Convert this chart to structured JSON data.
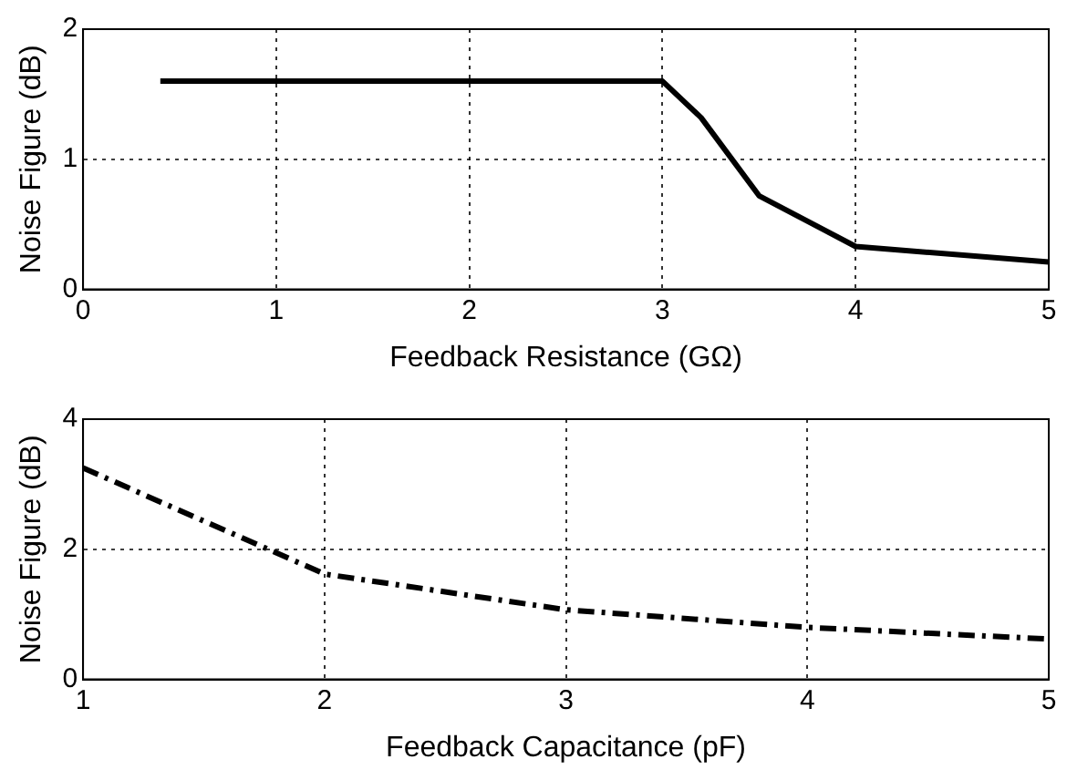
{
  "chart_data": [
    {
      "type": "line",
      "xlabel": "Feedback Resistance (GΩ)",
      "ylabel": "Noise Figure (dB)",
      "xlim": [
        0,
        5
      ],
      "xticks": [
        0,
        1,
        2,
        3,
        4,
        5
      ],
      "ylim": [
        0,
        2
      ],
      "yticks": [
        0,
        1,
        2
      ],
      "grid": true,
      "legend": false,
      "line_style": "solid",
      "marker": "none",
      "series": [
        {
          "color": "#000000",
          "x": [
            0.4,
            3,
            3.2,
            3.5,
            4,
            5
          ],
          "values": [
            1.6,
            1.6,
            1.32,
            0.72,
            0.33,
            0.21
          ]
        }
      ]
    },
    {
      "type": "line",
      "xlabel": "Feedback Capacitance (pF)",
      "ylabel": "Noise Figure (dB)",
      "xlim": [
        1,
        5
      ],
      "xticks": [
        1,
        2,
        3,
        4,
        5
      ],
      "ylim": [
        0,
        4
      ],
      "yticks": [
        0,
        2,
        4
      ],
      "grid": true,
      "legend": false,
      "line_style": "dashed",
      "marker": "none",
      "series": [
        {
          "color": "#000000",
          "x": [
            1,
            2,
            3,
            4,
            5
          ],
          "values": [
            3.25,
            1.62,
            1.07,
            0.8,
            0.62
          ]
        }
      ]
    }
  ]
}
